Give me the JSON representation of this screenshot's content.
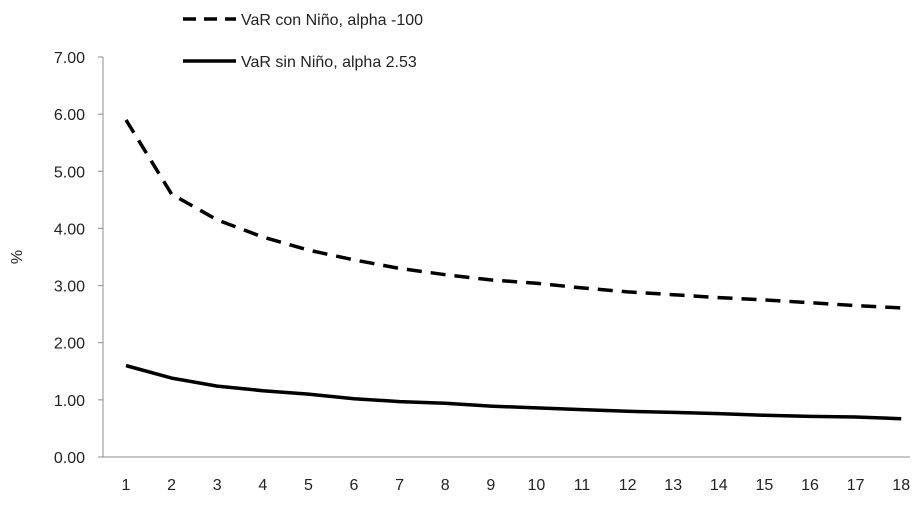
{
  "chart_data": {
    "type": "line",
    "title": "",
    "xlabel": "",
    "ylabel": "%",
    "x": [
      1,
      2,
      3,
      4,
      5,
      6,
      7,
      8,
      9,
      10,
      11,
      12,
      13,
      14,
      15,
      16,
      17,
      18
    ],
    "x_tick_labels": [
      "1",
      "2",
      "3",
      "4",
      "5",
      "6",
      "7",
      "8",
      "9",
      "10",
      "11",
      "12",
      "13",
      "14",
      "15",
      "16",
      "17",
      "18"
    ],
    "ylim": [
      0,
      7
    ],
    "y_tick_labels": [
      "0.00",
      "1.00",
      "2.00",
      "3.00",
      "4.00",
      "5.00",
      "6.00",
      "7.00"
    ],
    "grid": false,
    "legend_position": "top-left",
    "series": [
      {
        "name": "VaR con Niño, alpha -100",
        "style": "dashed",
        "color": "#000000",
        "values": [
          5.9,
          4.6,
          4.15,
          3.85,
          3.62,
          3.45,
          3.3,
          3.19,
          3.1,
          3.04,
          2.96,
          2.89,
          2.84,
          2.79,
          2.75,
          2.7,
          2.65,
          2.61
        ]
      },
      {
        "name": "VaR sin Niño, alpha 2.53",
        "style": "solid",
        "color": "#000000",
        "values": [
          1.6,
          1.38,
          1.24,
          1.16,
          1.1,
          1.02,
          0.97,
          0.94,
          0.89,
          0.86,
          0.83,
          0.8,
          0.78,
          0.76,
          0.73,
          0.71,
          0.7,
          0.67
        ]
      }
    ]
  }
}
